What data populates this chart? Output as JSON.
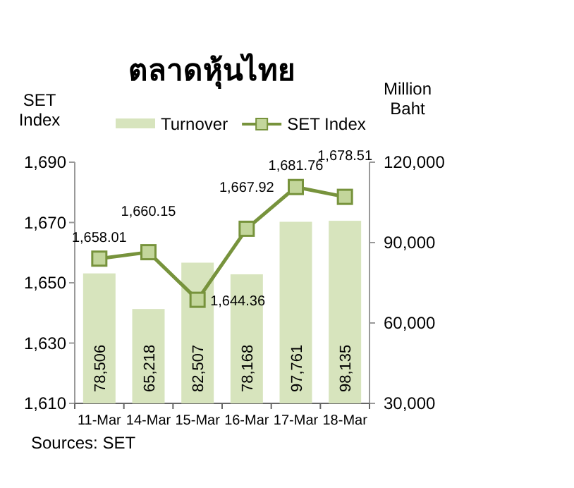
{
  "chart_data": {
    "type": "bar",
    "title": "ตลาดหุ้นไทย",
    "ylabel": "SET Index",
    "y2label": "Million Baht",
    "categories": [
      "11-Mar",
      "14-Mar",
      "15-Mar",
      "16-Mar",
      "17-Mar",
      "18-Mar"
    ],
    "series": [
      {
        "name": "Turnover",
        "axis": "y2",
        "color": "#d7e4bd",
        "values": [
          78506,
          65218,
          82507,
          78168,
          97761,
          98135
        ],
        "value_labels": [
          "78,506",
          "65,218",
          "82,507",
          "78,168",
          "97,761",
          "98,135"
        ]
      },
      {
        "name": "SET Index",
        "type": "line",
        "axis": "y",
        "color": "#77933c",
        "marker": "square",
        "values": [
          1658.01,
          1660.15,
          1644.36,
          1667.92,
          1681.76,
          1678.51
        ],
        "value_labels": [
          "1,658.01",
          "1,660.15",
          "1,644.36",
          "1,667.92",
          "1,681.76",
          "1,678.51"
        ]
      }
    ],
    "ylim": [
      1610,
      1690
    ],
    "yticks": [
      {
        "value": 1610,
        "label": "1,610"
      },
      {
        "value": 1630,
        "label": "1,630"
      },
      {
        "value": 1650,
        "label": "1,650"
      },
      {
        "value": 1670,
        "label": "1,670"
      },
      {
        "value": 1690,
        "label": "1,690"
      }
    ],
    "y2lim": [
      30000,
      120000
    ],
    "y2ticks": [
      {
        "value": 30000,
        "label": "30,000"
      },
      {
        "value": 60000,
        "label": "60,000"
      },
      {
        "value": 90000,
        "label": "90,000"
      },
      {
        "value": 120000,
        "label": "120,000"
      }
    ],
    "legend": "top",
    "grid": false,
    "annotations": [
      "Sources: SET"
    ]
  }
}
